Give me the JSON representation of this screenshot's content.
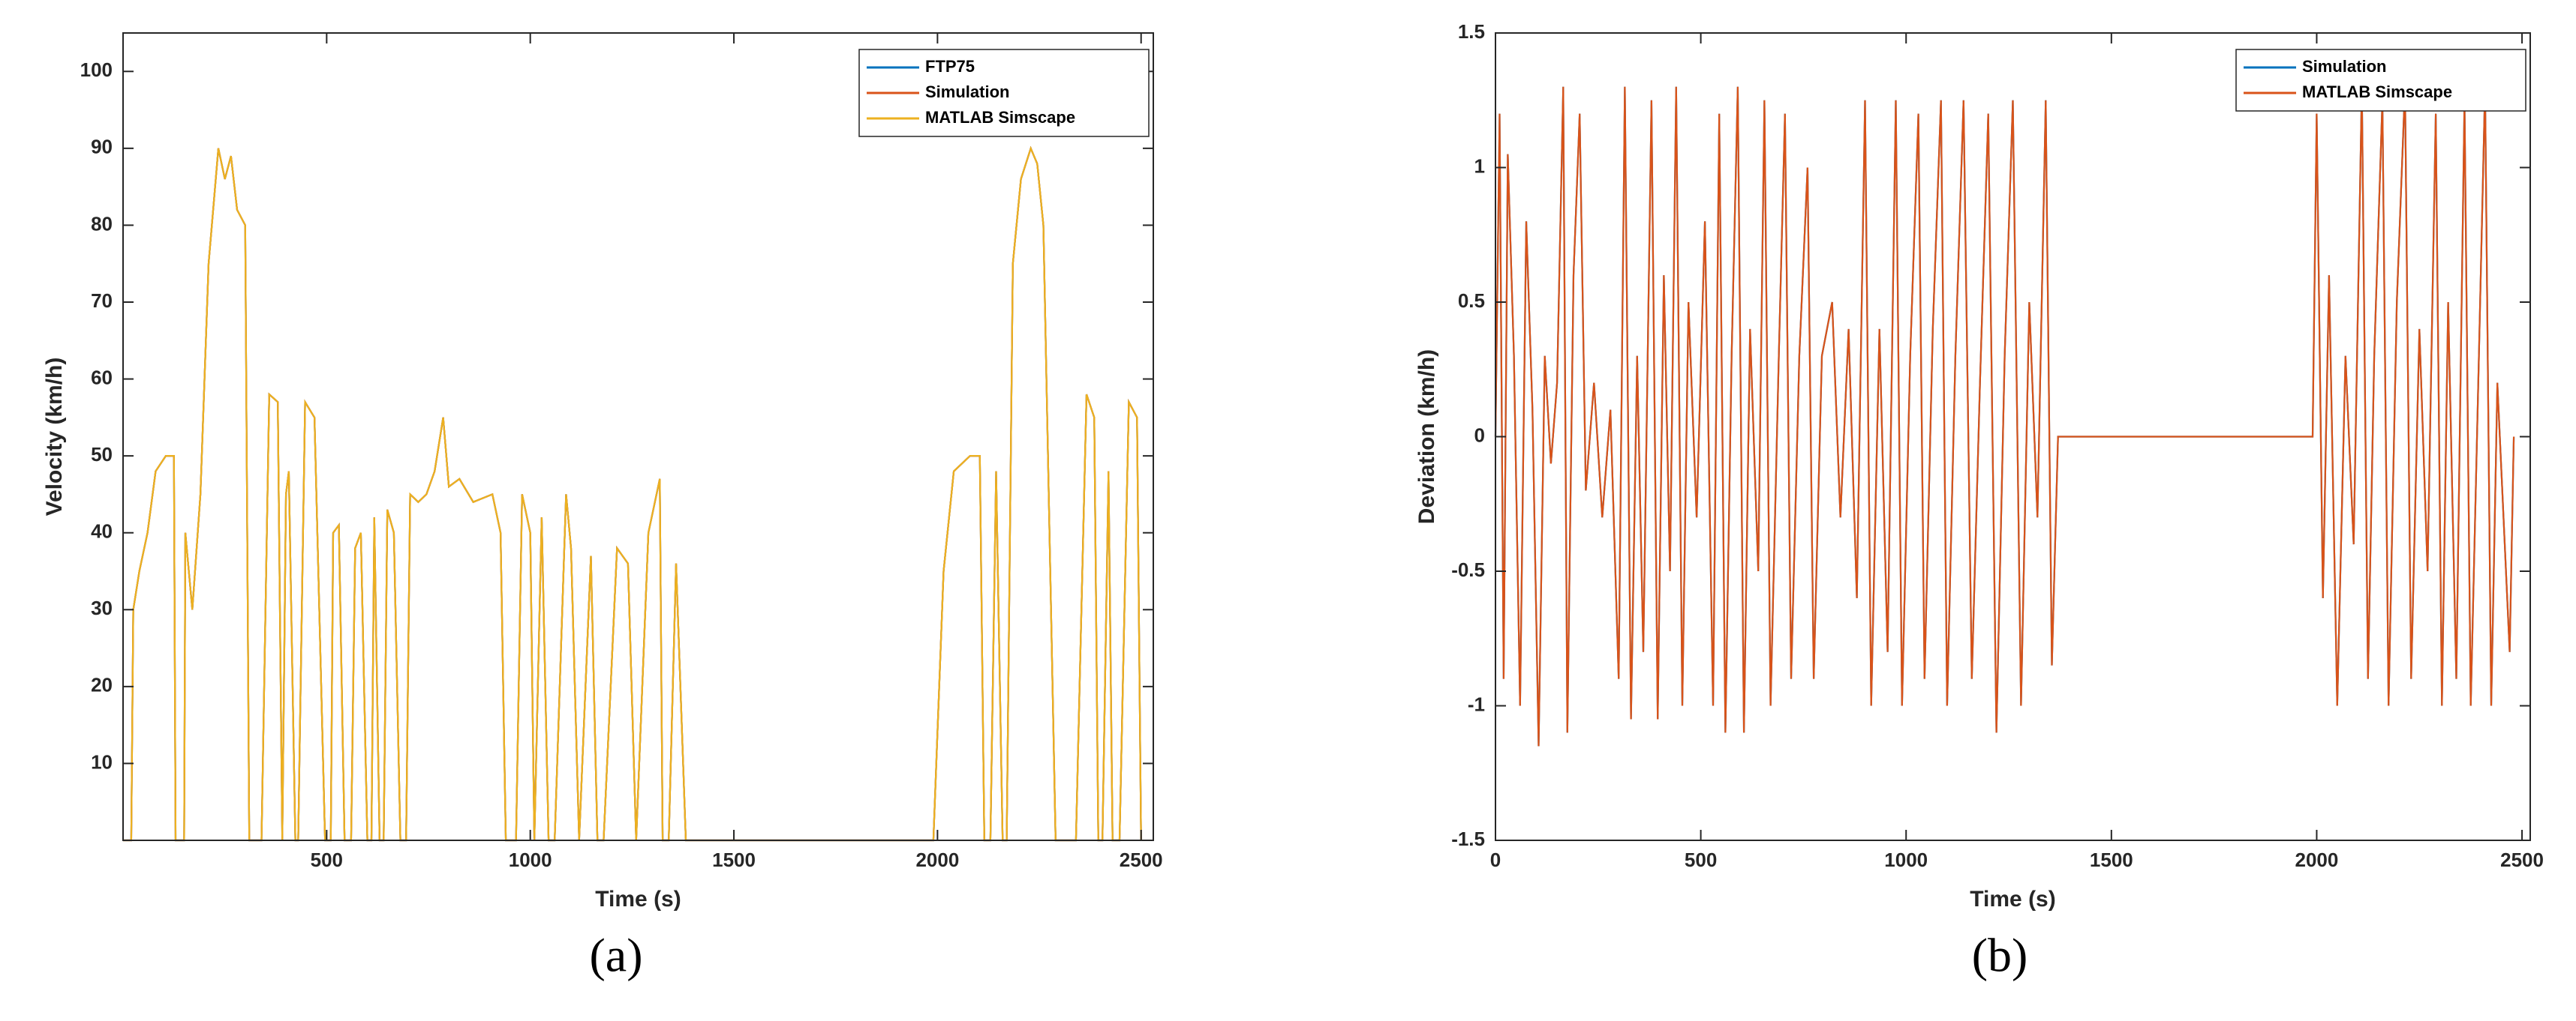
{
  "chart_data": [
    {
      "type": "line",
      "caption": "(a)",
      "x_label": "Time (s)",
      "y_label": "Velocity (km/h)",
      "xlim": [
        0,
        2530
      ],
      "ylim": [
        0,
        105
      ],
      "xticks": [
        500,
        1000,
        1500,
        2000,
        2500
      ],
      "yticks": [
        10,
        20,
        30,
        40,
        50,
        60,
        70,
        80,
        90,
        100
      ],
      "legend": "northeast",
      "x": [
        0,
        20,
        25,
        40,
        60,
        80,
        105,
        125,
        129,
        150,
        153,
        170,
        190,
        210,
        234,
        250,
        265,
        280,
        300,
        310,
        340,
        359,
        380,
        391,
        400,
        407,
        423,
        430,
        447,
        470,
        496,
        510,
        516,
        530,
        544,
        560,
        570,
        584,
        600,
        610,
        617,
        630,
        640,
        649,
        665,
        681,
        695,
        705,
        725,
        745,
        765,
        786,
        800,
        826,
        860,
        907,
        927,
        940,
        965,
        980,
        1000,
        1010,
        1028,
        1045,
        1060,
        1088,
        1100,
        1120,
        1149,
        1165,
        1180,
        1213,
        1240,
        1260,
        1290,
        1318,
        1325,
        1340,
        1358,
        1382,
        1990,
        2015,
        2040,
        2080,
        2104,
        2115,
        2130,
        2144,
        2160,
        2170,
        2185,
        2205,
        2229,
        2245,
        2260,
        2290,
        2317,
        2340,
        2366,
        2385,
        2395,
        2405,
        2420,
        2430,
        2447,
        2470,
        2490,
        2500
      ],
      "series": [
        {
          "name": "FTP75",
          "color": "#0072BD",
          "values": [
            0,
            0,
            30,
            35,
            40,
            48,
            50,
            50,
            0,
            0,
            40,
            30,
            45,
            75,
            90,
            86,
            89,
            82,
            80,
            0,
            0,
            58,
            57,
            0,
            45,
            48,
            0,
            0,
            57,
            55,
            0,
            0,
            40,
            41,
            0,
            0,
            38,
            40,
            0,
            0,
            42,
            0,
            0,
            43,
            40,
            0,
            0,
            45,
            44,
            45,
            48,
            55,
            46,
            47,
            44,
            45,
            40,
            0,
            0,
            45,
            40,
            0,
            42,
            0,
            0,
            45,
            38,
            0,
            37,
            0,
            0,
            38,
            36,
            0,
            40,
            47,
            0,
            0,
            36,
            0,
            0,
            35,
            48,
            50,
            50,
            0,
            0,
            48,
            0,
            0,
            75,
            86,
            90,
            88,
            80,
            0,
            0,
            0,
            58,
            55,
            0,
            0,
            48,
            0,
            0,
            57,
            55,
            0
          ]
        },
        {
          "name": "Simulation",
          "color": "#D95319",
          "values": [
            0,
            0,
            30,
            35,
            40,
            48,
            50,
            50,
            0,
            0,
            40,
            30,
            45,
            75,
            90,
            86,
            89,
            82,
            80,
            0,
            0,
            58,
            57,
            0,
            45,
            48,
            0,
            0,
            57,
            55,
            0,
            0,
            40,
            41,
            0,
            0,
            38,
            40,
            0,
            0,
            42,
            0,
            0,
            43,
            40,
            0,
            0,
            45,
            44,
            45,
            48,
            55,
            46,
            47,
            44,
            45,
            40,
            0,
            0,
            45,
            40,
            0,
            42,
            0,
            0,
            45,
            38,
            0,
            37,
            0,
            0,
            38,
            36,
            0,
            40,
            47,
            0,
            0,
            36,
            0,
            0,
            35,
            48,
            50,
            50,
            0,
            0,
            48,
            0,
            0,
            75,
            86,
            90,
            88,
            80,
            0,
            0,
            0,
            58,
            55,
            0,
            0,
            48,
            0,
            0,
            57,
            55,
            0
          ]
        },
        {
          "name": "MATLAB Simscape",
          "color": "#EDB120",
          "values": [
            0,
            0,
            30,
            35,
            40,
            48,
            50,
            50,
            0,
            0,
            40,
            30,
            45,
            75,
            90,
            86,
            89,
            82,
            80,
            0,
            0,
            58,
            57,
            0,
            45,
            48,
            0,
            0,
            57,
            55,
            0,
            0,
            40,
            41,
            0,
            0,
            38,
            40,
            0,
            0,
            42,
            0,
            0,
            43,
            40,
            0,
            0,
            45,
            44,
            45,
            48,
            55,
            46,
            47,
            44,
            45,
            40,
            0,
            0,
            45,
            40,
            0,
            42,
            0,
            0,
            45,
            38,
            0,
            37,
            0,
            0,
            38,
            36,
            0,
            40,
            47,
            0,
            0,
            36,
            0,
            0,
            35,
            48,
            50,
            50,
            0,
            0,
            48,
            0,
            0,
            75,
            86,
            90,
            88,
            80,
            0,
            0,
            0,
            58,
            55,
            0,
            0,
            48,
            0,
            0,
            57,
            55,
            0
          ]
        }
      ]
    },
    {
      "type": "line",
      "caption": "(b)",
      "x_label": "Time (s)",
      "y_label": "Deviation (km/h)",
      "xlim": [
        0,
        2520
      ],
      "ylim": [
        -1.5,
        1.5
      ],
      "xticks": [
        0,
        500,
        1000,
        1500,
        2000,
        2500
      ],
      "yticks": [
        -1.5,
        -1,
        -0.5,
        0,
        0.5,
        1,
        1.5
      ],
      "legend": "northeast",
      "x": [
        0,
        10,
        20,
        30,
        45,
        60,
        75,
        90,
        105,
        120,
        135,
        150,
        165,
        175,
        190,
        205,
        220,
        240,
        260,
        280,
        300,
        315,
        330,
        345,
        360,
        380,
        395,
        410,
        425,
        440,
        455,
        470,
        490,
        510,
        530,
        545,
        560,
        575,
        590,
        605,
        620,
        640,
        655,
        670,
        690,
        705,
        720,
        740,
        760,
        775,
        795,
        820,
        840,
        860,
        880,
        900,
        915,
        935,
        955,
        975,
        990,
        1010,
        1030,
        1045,
        1065,
        1085,
        1100,
        1120,
        1140,
        1160,
        1180,
        1200,
        1220,
        1240,
        1260,
        1280,
        1300,
        1320,
        1340,
        1355,
        1370,
        1990,
        2000,
        2015,
        2030,
        2050,
        2070,
        2090,
        2110,
        2125,
        2140,
        2160,
        2175,
        2195,
        2215,
        2230,
        2250,
        2270,
        2290,
        2305,
        2320,
        2340,
        2360,
        2375,
        2395,
        2410,
        2425,
        2440,
        2455,
        2470,
        2480
      ],
      "series": [
        {
          "name": "Simulation",
          "color": "#0072BD",
          "values": [
            0,
            1.2,
            -0.9,
            1.05,
            0.3,
            -1,
            0.8,
            0.1,
            -1.15,
            0.3,
            -0.1,
            0.2,
            1.3,
            -1.1,
            0.6,
            1.2,
            -0.2,
            0.2,
            -0.3,
            0.1,
            -0.9,
            1.3,
            -1.05,
            0.3,
            -0.8,
            1.25,
            -1.05,
            0.6,
            -0.5,
            1.3,
            -1,
            0.5,
            -0.3,
            0.8,
            -1,
            1.2,
            -1.1,
            0.3,
            1.3,
            -1.1,
            0.4,
            -0.5,
            1.25,
            -1,
            0.3,
            1.2,
            -0.9,
            0.3,
            1,
            -0.9,
            0.3,
            0.5,
            -0.3,
            0.4,
            -0.6,
            1.25,
            -1,
            0.4,
            -0.8,
            1.25,
            -1,
            0.3,
            1.2,
            -0.9,
            0.4,
            1.25,
            -1,
            0.3,
            1.25,
            -0.9,
            0.2,
            1.2,
            -1.1,
            0.3,
            1.25,
            -1,
            0.5,
            -0.3,
            1.25,
            -0.85,
            0,
            0,
            1.2,
            -0.6,
            0.6,
            -1,
            0.3,
            -0.4,
            1.3,
            -0.9,
            0.3,
            1.25,
            -1,
            0.5,
            1.3,
            -0.9,
            0.4,
            -0.5,
            1.2,
            -1,
            0.5,
            -0.9,
            1.25,
            -1,
            0.3,
            1.3,
            -1,
            0.2,
            -0.3,
            -0.8,
            0
          ]
        },
        {
          "name": "MATLAB Simscape",
          "color": "#D95319",
          "values": [
            0,
            1.2,
            -0.9,
            1.05,
            0.3,
            -1,
            0.8,
            0.1,
            -1.15,
            0.3,
            -0.1,
            0.2,
            1.3,
            -1.1,
            0.6,
            1.2,
            -0.2,
            0.2,
            -0.3,
            0.1,
            -0.9,
            1.3,
            -1.05,
            0.3,
            -0.8,
            1.25,
            -1.05,
            0.6,
            -0.5,
            1.3,
            -1,
            0.5,
            -0.3,
            0.8,
            -1,
            1.2,
            -1.1,
            0.3,
            1.3,
            -1.1,
            0.4,
            -0.5,
            1.25,
            -1,
            0.3,
            1.2,
            -0.9,
            0.3,
            1,
            -0.9,
            0.3,
            0.5,
            -0.3,
            0.4,
            -0.6,
            1.25,
            -1,
            0.4,
            -0.8,
            1.25,
            -1,
            0.3,
            1.2,
            -0.9,
            0.4,
            1.25,
            -1,
            0.3,
            1.25,
            -0.9,
            0.2,
            1.2,
            -1.1,
            0.3,
            1.25,
            -1,
            0.5,
            -0.3,
            1.25,
            -0.85,
            0,
            0,
            1.2,
            -0.6,
            0.6,
            -1,
            0.3,
            -0.4,
            1.3,
            -0.9,
            0.3,
            1.25,
            -1,
            0.5,
            1.3,
            -0.9,
            0.4,
            -0.5,
            1.2,
            -1,
            0.5,
            -0.9,
            1.25,
            -1,
            0.3,
            1.3,
            -1,
            0.2,
            -0.3,
            -0.8,
            0
          ]
        }
      ]
    }
  ]
}
